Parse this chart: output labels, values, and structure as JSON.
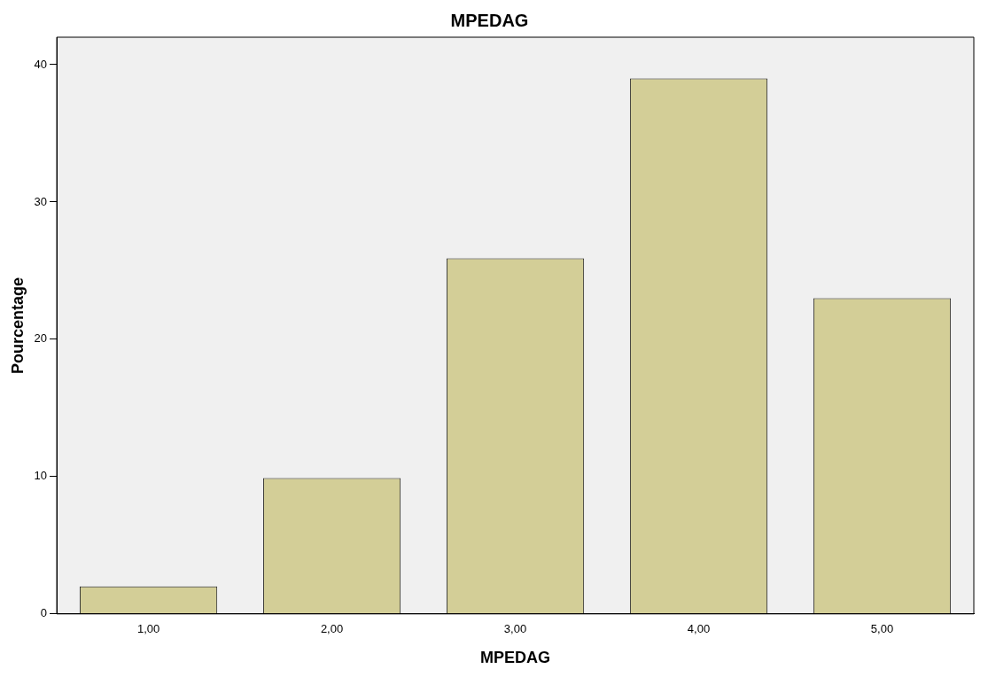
{
  "chart_data": {
    "type": "bar",
    "title": "MPEDAG",
    "xlabel": "MPEDAG",
    "ylabel": "Pourcentage",
    "categories": [
      "1,00",
      "2,00",
      "3,00",
      "4,00",
      "5,00"
    ],
    "values": [
      2,
      9.9,
      25.9,
      39,
      23
    ],
    "color": "#d3ce97",
    "ylim": [
      0,
      42
    ],
    "yticks": [
      0,
      10,
      20,
      30,
      40
    ],
    "grid": false,
    "legend": false
  }
}
